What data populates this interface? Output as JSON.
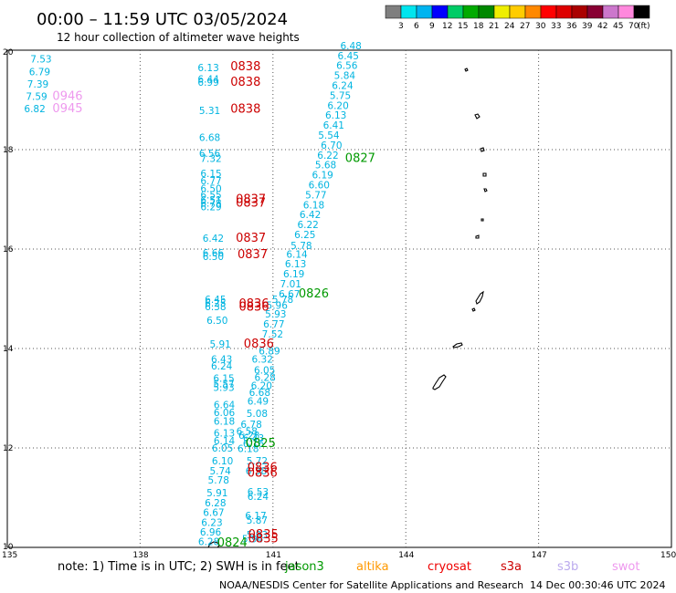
{
  "header": {
    "title": "00:00 – 11:59 UTC 03/05/2024",
    "subtitle": "12 hour collection of altimeter wave heights"
  },
  "color_scale": {
    "labels": [
      "3",
      "6",
      "9",
      "12",
      "15",
      "18",
      "21",
      "24",
      "27",
      "30",
      "33",
      "36",
      "39",
      "42",
      "45",
      "70",
      "(ft)"
    ],
    "colors": [
      "#7f7f7f",
      "#00e5ee",
      "#00b4f0",
      "#0000ff",
      "#00cc66",
      "#00aa00",
      "#008800",
      "#eeee00",
      "#ffcc00",
      "#ff8800",
      "#ff0000",
      "#dd0000",
      "#aa0000",
      "#880033",
      "#cc77cc",
      "#ff88dd",
      "#000000"
    ]
  },
  "footer": {
    "note": "note:  1) Time is in UTC; 2) SWH is in feet",
    "credit": "NOAA/NESDIS Center for Satellite Applications and Research",
    "generated": "14 Dec 00:30:46 UTC 2024",
    "satellites": [
      {
        "name": "jason3",
        "color": "#009900"
      },
      {
        "name": "altika",
        "color": "#ff9900"
      },
      {
        "name": "cryosat",
        "color": "#ee0000"
      },
      {
        "name": "s3a",
        "color": "#cc0000"
      },
      {
        "name": "s3b",
        "color": "#bbaaee"
      },
      {
        "name": "swot",
        "color": "#ee99ee"
      }
    ]
  },
  "chart_data": {
    "type": "scatter",
    "xlim": [
      135,
      150
    ],
    "ylim": [
      10,
      20
    ],
    "x_ticks": [
      "135",
      "138",
      "141",
      "144",
      "147",
      "150"
    ],
    "y_ticks": [
      "10",
      "12",
      "14",
      "16",
      "18",
      "20"
    ],
    "grid": true,
    "height_color": "#00b4e0",
    "wave_heights": [
      {
        "lon": 135.52,
        "lat": 19.75,
        "v": "7.53"
      },
      {
        "lon": 135.49,
        "lat": 19.5,
        "v": "6.79"
      },
      {
        "lon": 135.45,
        "lat": 19.25,
        "v": "7.39"
      },
      {
        "lon": 135.42,
        "lat": 19.0,
        "v": "7.59"
      },
      {
        "lon": 135.38,
        "lat": 18.75,
        "v": "6.82"
      },
      {
        "lon": 139.3,
        "lat": 19.58,
        "v": "6.13"
      },
      {
        "lon": 139.3,
        "lat": 19.35,
        "v": "6.44"
      },
      {
        "lon": 139.3,
        "lat": 19.28,
        "v": "6.99"
      },
      {
        "lon": 139.33,
        "lat": 18.72,
        "v": "5.31"
      },
      {
        "lon": 139.33,
        "lat": 18.17,
        "v": "6.68"
      },
      {
        "lon": 139.33,
        "lat": 17.85,
        "v": "6.56"
      },
      {
        "lon": 139.36,
        "lat": 17.75,
        "v": "7.32"
      },
      {
        "lon": 139.36,
        "lat": 17.45,
        "v": "6.15"
      },
      {
        "lon": 139.36,
        "lat": 17.3,
        "v": "6.77"
      },
      {
        "lon": 139.36,
        "lat": 17.15,
        "v": "6.50"
      },
      {
        "lon": 139.36,
        "lat": 17.02,
        "v": "6.55"
      },
      {
        "lon": 139.36,
        "lat": 16.92,
        "v": "6.51"
      },
      {
        "lon": 139.36,
        "lat": 16.85,
        "v": "6.78"
      },
      {
        "lon": 139.36,
        "lat": 16.78,
        "v": "6.29"
      },
      {
        "lon": 139.41,
        "lat": 16.15,
        "v": "6.42"
      },
      {
        "lon": 139.41,
        "lat": 15.85,
        "v": "6.66"
      },
      {
        "lon": 139.41,
        "lat": 15.78,
        "v": "6.50"
      },
      {
        "lon": 139.46,
        "lat": 14.92,
        "v": "6.45"
      },
      {
        "lon": 139.46,
        "lat": 14.84,
        "v": "6.25"
      },
      {
        "lon": 139.46,
        "lat": 14.77,
        "v": "6.38"
      },
      {
        "lon": 139.5,
        "lat": 14.5,
        "v": "6.50"
      },
      {
        "lon": 139.57,
        "lat": 14.02,
        "v": "5.91"
      },
      {
        "lon": 139.6,
        "lat": 13.72,
        "v": "6.43"
      },
      {
        "lon": 139.6,
        "lat": 13.58,
        "v": "6.24"
      },
      {
        "lon": 139.65,
        "lat": 13.33,
        "v": "6.15"
      },
      {
        "lon": 139.65,
        "lat": 13.22,
        "v": "5.57"
      },
      {
        "lon": 139.65,
        "lat": 13.15,
        "v": "5.93"
      },
      {
        "lon": 139.66,
        "lat": 12.8,
        "v": "6.64"
      },
      {
        "lon": 139.66,
        "lat": 12.64,
        "v": "6.06"
      },
      {
        "lon": 139.66,
        "lat": 12.47,
        "v": "6.18"
      },
      {
        "lon": 139.66,
        "lat": 12.23,
        "v": "6.13"
      },
      {
        "lon": 139.66,
        "lat": 12.07,
        "v": "6.14"
      },
      {
        "lon": 139.62,
        "lat": 11.93,
        "v": "6.05"
      },
      {
        "lon": 139.62,
        "lat": 11.67,
        "v": "6.10"
      },
      {
        "lon": 139.57,
        "lat": 11.47,
        "v": "5.74"
      },
      {
        "lon": 139.53,
        "lat": 11.28,
        "v": "5.78"
      },
      {
        "lon": 139.5,
        "lat": 11.03,
        "v": "5.91"
      },
      {
        "lon": 139.46,
        "lat": 10.83,
        "v": "6.28"
      },
      {
        "lon": 139.42,
        "lat": 10.63,
        "v": "6.67"
      },
      {
        "lon": 139.38,
        "lat": 10.43,
        "v": "6.23"
      },
      {
        "lon": 139.35,
        "lat": 10.24,
        "v": "6.96"
      },
      {
        "lon": 139.31,
        "lat": 10.05,
        "v": "6.28"
      },
      {
        "lon": 140.27,
        "lat": 12.4,
        "v": "6.78"
      },
      {
        "lon": 140.17,
        "lat": 12.27,
        "v": "6.58"
      },
      {
        "lon": 140.22,
        "lat": 12.18,
        "v": "6.28"
      },
      {
        "lon": 140.32,
        "lat": 12.13,
        "v": "6.43"
      },
      {
        "lon": 140.32,
        "lat": 12.02,
        "v": "6.16"
      },
      {
        "lon": 140.2,
        "lat": 11.92,
        "v": "6.18"
      },
      {
        "lon": 140.4,
        "lat": 11.67,
        "v": "5.72"
      },
      {
        "lon": 140.38,
        "lat": 11.47,
        "v": "6.38"
      },
      {
        "lon": 140.42,
        "lat": 11.05,
        "v": "6.53"
      },
      {
        "lon": 140.42,
        "lat": 10.95,
        "v": "6.24"
      },
      {
        "lon": 140.37,
        "lat": 10.57,
        "v": "6.17"
      },
      {
        "lon": 140.4,
        "lat": 10.48,
        "v": "5.87"
      },
      {
        "lon": 140.4,
        "lat": 10.18,
        "v": "5.93"
      },
      {
        "lon": 140.3,
        "lat": 10.1,
        "v": "5.94"
      },
      {
        "lon": 140.52,
        "lat": 13.72,
        "v": "6.32"
      },
      {
        "lon": 140.68,
        "lat": 13.88,
        "v": "6.89"
      },
      {
        "lon": 140.57,
        "lat": 13.5,
        "v": "6.05"
      },
      {
        "lon": 140.58,
        "lat": 13.35,
        "v": "6.28"
      },
      {
        "lon": 140.5,
        "lat": 13.18,
        "v": "6.20"
      },
      {
        "lon": 140.46,
        "lat": 13.05,
        "v": "6.68"
      },
      {
        "lon": 140.42,
        "lat": 12.87,
        "v": "6.49"
      },
      {
        "lon": 140.4,
        "lat": 12.62,
        "v": "5.08"
      },
      {
        "lon": 140.75,
        "lat": 14.22,
        "v": "7.52"
      },
      {
        "lon": 140.78,
        "lat": 14.42,
        "v": "6.77"
      },
      {
        "lon": 140.82,
        "lat": 14.62,
        "v": "5.93"
      },
      {
        "lon": 140.85,
        "lat": 14.8,
        "v": "5.96"
      },
      {
        "lon": 140.98,
        "lat": 14.92,
        "v": "5.78"
      },
      {
        "lon": 141.13,
        "lat": 15.03,
        "v": "6.67"
      },
      {
        "lon": 141.16,
        "lat": 15.23,
        "v": "7.01"
      },
      {
        "lon": 141.23,
        "lat": 15.43,
        "v": "6.19"
      },
      {
        "lon": 141.27,
        "lat": 15.63,
        "v": "6.13"
      },
      {
        "lon": 141.3,
        "lat": 15.83,
        "v": "6.14"
      },
      {
        "lon": 141.4,
        "lat": 16.0,
        "v": "5.78"
      },
      {
        "lon": 141.48,
        "lat": 16.22,
        "v": "6.25"
      },
      {
        "lon": 141.55,
        "lat": 16.42,
        "v": "6.22"
      },
      {
        "lon": 141.6,
        "lat": 16.62,
        "v": "6.42"
      },
      {
        "lon": 141.68,
        "lat": 16.82,
        "v": "6.18"
      },
      {
        "lon": 141.73,
        "lat": 17.02,
        "v": "5.77"
      },
      {
        "lon": 141.8,
        "lat": 17.22,
        "v": "6.60"
      },
      {
        "lon": 141.88,
        "lat": 17.42,
        "v": "6.19"
      },
      {
        "lon": 141.95,
        "lat": 17.62,
        "v": "5.68"
      },
      {
        "lon": 142.0,
        "lat": 17.82,
        "v": "6.22"
      },
      {
        "lon": 142.08,
        "lat": 18.02,
        "v": "6.70"
      },
      {
        "lon": 142.02,
        "lat": 18.22,
        "v": "5.54"
      },
      {
        "lon": 142.13,
        "lat": 18.42,
        "v": "6.41"
      },
      {
        "lon": 142.18,
        "lat": 18.62,
        "v": "6.13"
      },
      {
        "lon": 142.23,
        "lat": 18.82,
        "v": "6.20"
      },
      {
        "lon": 142.28,
        "lat": 19.02,
        "v": "5.75"
      },
      {
        "lon": 142.33,
        "lat": 19.22,
        "v": "6.24"
      },
      {
        "lon": 142.38,
        "lat": 19.42,
        "v": "5.84"
      },
      {
        "lon": 142.43,
        "lat": 19.62,
        "v": "6.56"
      },
      {
        "lon": 142.46,
        "lat": 19.82,
        "v": "6.45"
      },
      {
        "lon": 142.52,
        "lat": 20.02,
        "v": "6.48"
      }
    ],
    "pass_times": [
      {
        "lon": 140.04,
        "lat": 19.6,
        "t": "0838",
        "sat": "s3a"
      },
      {
        "lon": 140.04,
        "lat": 19.28,
        "t": "0838",
        "sat": "s3a"
      },
      {
        "lon": 140.04,
        "lat": 18.74,
        "t": "0838",
        "sat": "s3a"
      },
      {
        "lon": 140.16,
        "lat": 16.93,
        "t": "0837",
        "sat": "s3a"
      },
      {
        "lon": 140.16,
        "lat": 16.85,
        "t": "0837",
        "sat": "s3a"
      },
      {
        "lon": 140.16,
        "lat": 16.15,
        "t": "0837",
        "sat": "s3a"
      },
      {
        "lon": 140.2,
        "lat": 15.82,
        "t": "0837",
        "sat": "s3a"
      },
      {
        "lon": 140.23,
        "lat": 14.83,
        "t": "0836",
        "sat": "s3a"
      },
      {
        "lon": 140.23,
        "lat": 14.76,
        "t": "0836",
        "sat": "s3a"
      },
      {
        "lon": 140.34,
        "lat": 14.02,
        "t": "0836",
        "sat": "s3a"
      },
      {
        "lon": 140.42,
        "lat": 11.53,
        "t": "0836",
        "sat": "s3a"
      },
      {
        "lon": 140.42,
        "lat": 11.42,
        "t": "0836",
        "sat": "s3a"
      },
      {
        "lon": 140.44,
        "lat": 10.18,
        "t": "0835",
        "sat": "s3a"
      },
      {
        "lon": 140.44,
        "lat": 10.1,
        "t": "0835",
        "sat": "s3a"
      },
      {
        "lon": 142.63,
        "lat": 17.75,
        "t": "0827",
        "sat": "jason3"
      },
      {
        "lon": 141.58,
        "lat": 15.03,
        "t": "0826",
        "sat": "jason3"
      },
      {
        "lon": 140.38,
        "lat": 12.02,
        "t": "0825",
        "sat": "jason3"
      },
      {
        "lon": 139.74,
        "lat": 10.02,
        "t": "0824",
        "sat": "jason3"
      },
      {
        "lon": 136.02,
        "lat": 19.0,
        "t": "0946",
        "sat": "swot"
      },
      {
        "lon": 136.02,
        "lat": 18.75,
        "t": "0945",
        "sat": "swot"
      }
    ]
  }
}
